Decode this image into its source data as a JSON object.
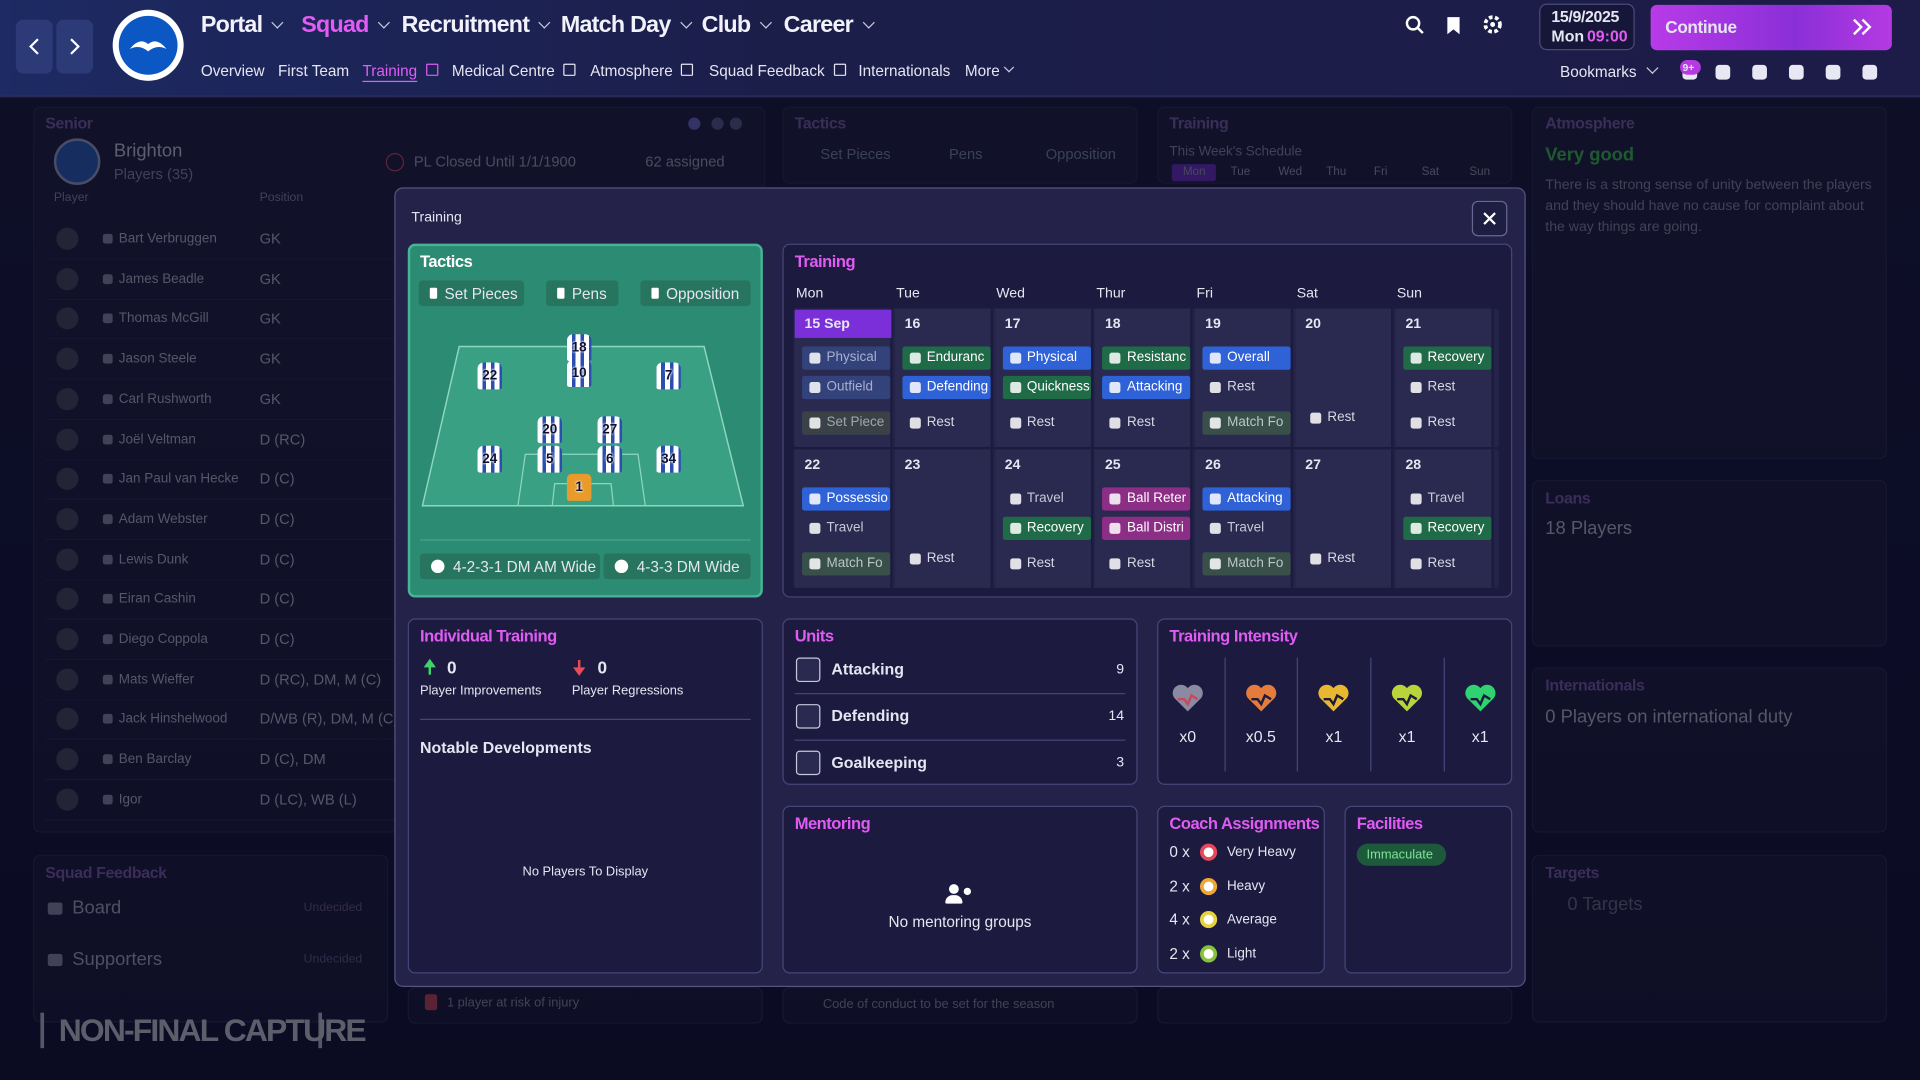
{
  "nav": {
    "items": [
      "Portal",
      "Squad",
      "Recruitment",
      "Match Day",
      "Club",
      "Career"
    ],
    "sub": [
      "Overview",
      "First Team",
      "Training",
      "Medical Centre",
      "Atmosphere",
      "Squad Feedback",
      "Internationals",
      "More"
    ],
    "date": "15/9/2025",
    "weekday": "Mon",
    "time": "09:00",
    "continue": "Continue",
    "bookmarks": "Bookmarks",
    "badge": "9+"
  },
  "background": {
    "senior": {
      "label": "Senior",
      "club": "Brighton",
      "players": "Players (35)",
      "closed": "PL Closed Until 1/1/1900",
      "assigned": "62 assigned",
      "col_player": "Player",
      "col_position": "Position",
      "rows": [
        [
          "Bart Verbruggen",
          "GK"
        ],
        [
          "James Beadle",
          "GK"
        ],
        [
          "Thomas McGill",
          "GK"
        ],
        [
          "Jason Steele",
          "GK"
        ],
        [
          "Carl Rushworth",
          "GK"
        ],
        [
          "Joël Veltman",
          "D (RC)"
        ],
        [
          "Jan Paul van Hecke",
          "D (C)"
        ],
        [
          "Adam Webster",
          "D (C)"
        ],
        [
          "Lewis Dunk",
          "D (C)"
        ],
        [
          "Eiran Cashin",
          "D (C)"
        ],
        [
          "Diego Coppola",
          "D (C)"
        ],
        [
          "Mats Wieffer",
          "D (RC), DM, M (C)"
        ],
        [
          "Jack Hinshelwood",
          "D/WB (R), DM, M (C)"
        ],
        [
          "Ben Barclay",
          "D (C), DM"
        ],
        [
          "Igor",
          "D (LC), WB (L)"
        ]
      ]
    },
    "tactics": {
      "label": "Tactics",
      "tabs": [
        "Set Pieces",
        "Pens",
        "Opposition"
      ]
    },
    "training": {
      "label": "Training",
      "sub": "This Week's Schedule",
      "days": [
        "Mon",
        "Tue",
        "Wed",
        "Thu",
        "Fri",
        "Sat",
        "Sun"
      ]
    },
    "atmosphere": {
      "label": "Atmosphere",
      "value": "Very good",
      "text": "There is a strong sense of unity between the players and they should have no cause for complaint about the way things are going."
    },
    "loans": {
      "label": "Loans",
      "value": "18 Players"
    },
    "internationals": {
      "label": "Internationals",
      "value": "0 Players on international duty"
    },
    "targets": {
      "label": "Targets",
      "value": "0 Targets"
    },
    "squad_feedback": {
      "label": "Squad Feedback",
      "rows": [
        {
          "name": "Board",
          "status": "Undecided"
        },
        {
          "name": "Supporters",
          "status": "Undecided"
        }
      ]
    },
    "injury": "1 player at risk of injury",
    "conduct": "Code of conduct to be set for the season",
    "watermark": "NON-FINAL CAPTURE"
  },
  "modal": {
    "title": "Training",
    "tactics": {
      "title": "Tactics",
      "tabs": [
        "Set Pieces",
        "Pens",
        "Opposition"
      ],
      "shirts": [
        "22",
        "18",
        "10",
        "7",
        "20",
        "27",
        "24",
        "5",
        "6",
        "34",
        "1"
      ],
      "formations": [
        "4-2-3-1 DM AM Wide",
        "4-3-3 DM Wide"
      ]
    },
    "training": {
      "title": "Training",
      "days": [
        "Mon",
        "Tue",
        "Wed",
        "Thur",
        "Fri",
        "Sat",
        "Sun"
      ],
      "weeks": [
        [
          {
            "date": "15 Sep",
            "sessions": [
              {
                "label": "Physical",
                "kind": "past"
              },
              {
                "label": "Outfield",
                "kind": "past"
              },
              {
                "label": "Set Piece",
                "kind": "pastgray"
              }
            ]
          },
          {
            "date": "16",
            "sessions": [
              {
                "label": "Enduranc",
                "kind": "green"
              },
              {
                "label": "Defending",
                "kind": "blue"
              },
              {
                "label": "Rest",
                "kind": "rest"
              }
            ]
          },
          {
            "date": "17",
            "sessions": [
              {
                "label": "Physical",
                "kind": "blue"
              },
              {
                "label": "Quickness",
                "kind": "green"
              },
              {
                "label": "Rest",
                "kind": "rest"
              }
            ]
          },
          {
            "date": "18",
            "sessions": [
              {
                "label": "Resistanc",
                "kind": "green"
              },
              {
                "label": "Attacking",
                "kind": "blue"
              },
              {
                "label": "Rest",
                "kind": "rest"
              }
            ]
          },
          {
            "date": "19",
            "sessions": [
              {
                "label": "Overall",
                "kind": "blue"
              },
              {
                "label": "Rest",
                "kind": "rest"
              },
              {
                "label": "Match Fo",
                "kind": "gray"
              }
            ]
          },
          {
            "date": "20",
            "sessions": [
              {
                "label": "Rest",
                "kind": "rest"
              }
            ]
          },
          {
            "date": "21",
            "sessions": [
              {
                "label": "Recovery",
                "kind": "green"
              },
              {
                "label": "Rest",
                "kind": "rest"
              },
              {
                "label": "Rest",
                "kind": "rest"
              }
            ]
          }
        ],
        [
          {
            "date": "22",
            "sessions": [
              {
                "label": "Possessio",
                "kind": "blue"
              },
              {
                "label": "Travel",
                "kind": "travel"
              },
              {
                "label": "Match Fo",
                "kind": "gray"
              }
            ]
          },
          {
            "date": "23",
            "sessions": [
              {
                "label": "Rest",
                "kind": "rest"
              }
            ]
          },
          {
            "date": "24",
            "sessions": [
              {
                "label": "Travel",
                "kind": "travel"
              },
              {
                "label": "Recovery",
                "kind": "green"
              },
              {
                "label": "Rest",
                "kind": "rest"
              }
            ]
          },
          {
            "date": "25",
            "sessions": [
              {
                "label": "Ball Reter",
                "kind": "pink"
              },
              {
                "label": "Ball Distri",
                "kind": "pink"
              },
              {
                "label": "Rest",
                "kind": "rest"
              }
            ]
          },
          {
            "date": "26",
            "sessions": [
              {
                "label": "Attacking",
                "kind": "blue"
              },
              {
                "label": "Travel",
                "kind": "travel"
              },
              {
                "label": "Match Fo",
                "kind": "gray"
              }
            ]
          },
          {
            "date": "27",
            "sessions": [
              {
                "label": "Rest",
                "kind": "rest"
              }
            ]
          },
          {
            "date": "28",
            "sessions": [
              {
                "label": "Travel",
                "kind": "travel"
              },
              {
                "label": "Recovery",
                "kind": "green"
              },
              {
                "label": "Rest",
                "kind": "rest"
              }
            ]
          }
        ]
      ]
    },
    "individual": {
      "title": "Individual Training",
      "improvements": 0,
      "improvements_label": "Player Improvements",
      "regressions": 0,
      "regressions_label": "Player Regressions",
      "notable": "Notable Developments",
      "empty": "No Players To Display"
    },
    "units": {
      "title": "Units",
      "rows": [
        {
          "name": "Attacking",
          "count": 9
        },
        {
          "name": "Defending",
          "count": 14
        },
        {
          "name": "Goalkeeping",
          "count": 3
        }
      ]
    },
    "intensity": {
      "title": "Training Intensity",
      "levels": [
        {
          "label": "x0",
          "color": "#c8485e"
        },
        {
          "label": "x0.5",
          "color": "#e57c3c"
        },
        {
          "label": "x1",
          "color": "#e8b930"
        },
        {
          "label": "x1",
          "color": "#b9d33a"
        },
        {
          "label": "x1",
          "color": "#2fd36f"
        }
      ]
    },
    "mentoring": {
      "title": "Mentoring",
      "empty": "No mentoring groups"
    },
    "coach": {
      "title": "Coach Assignments",
      "rows": [
        {
          "count": "0 x",
          "label": "Very Heavy",
          "color": "#e8465a"
        },
        {
          "count": "2 x",
          "label": "Heavy",
          "color": "#f0a632"
        },
        {
          "count": "4 x",
          "label": "Average",
          "color": "#e6d23c"
        },
        {
          "count": "2 x",
          "label": "Light",
          "color": "#86c23e"
        }
      ]
    },
    "facilities": {
      "title": "Facilities",
      "value": "Immaculate"
    }
  }
}
